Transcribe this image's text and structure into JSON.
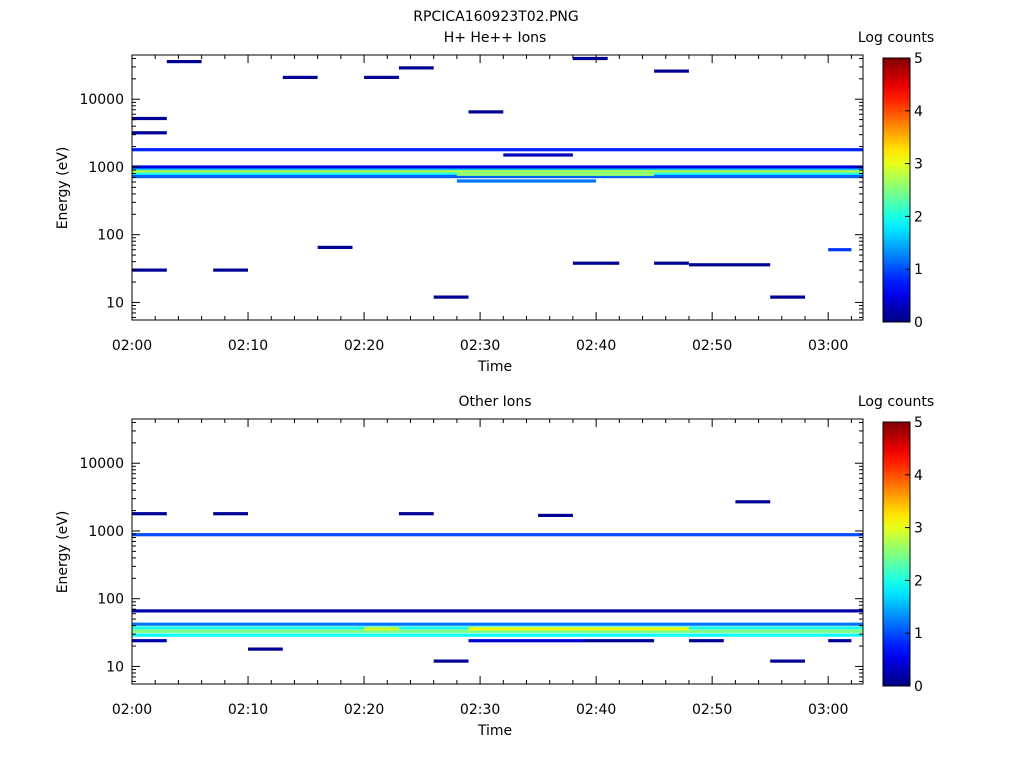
{
  "figure_title": "RPCICA160923T02.PNG",
  "colorbar": {
    "label": "Log counts",
    "ticks": [
      "0",
      "1",
      "2",
      "3",
      "4",
      "5"
    ],
    "range": [
      0,
      5
    ],
    "colormap": "jet"
  },
  "chart_data": [
    {
      "type": "heatmap",
      "title": "H+ He++ Ions",
      "xlabel": "Time",
      "ylabel": "Energy (eV)",
      "x_range": [
        "02:00",
        "03:03"
      ],
      "y_scale": "log",
      "ylim": [
        5.5,
        45000
      ],
      "xticks": [
        "02:00",
        "02:10",
        "02:20",
        "02:30",
        "02:40",
        "02:50",
        "03:00"
      ],
      "yticks": [
        "10",
        "100",
        "1000",
        "10000"
      ],
      "grid": false,
      "cells": [
        {
          "t0": "02:00",
          "t1": "03:03",
          "e": 1800,
          "v": 0.8
        },
        {
          "t0": "02:00",
          "t1": "03:03",
          "e": 1000,
          "v": 0.5
        },
        {
          "t0": "02:00",
          "t1": "03:03",
          "e": 900,
          "v": 1.6
        },
        {
          "t0": "02:00",
          "t1": "03:03",
          "e": 850,
          "v": 2.8
        },
        {
          "t0": "02:00",
          "t1": "03:03",
          "e": 800,
          "v": 2.4
        },
        {
          "t0": "02:00",
          "t1": "03:03",
          "e": 760,
          "v": 1.8
        },
        {
          "t0": "02:00",
          "t1": "03:03",
          "e": 720,
          "v": 1.1
        },
        {
          "t0": "02:28",
          "t1": "02:45",
          "e": 780,
          "v": 2.6
        },
        {
          "t0": "02:28",
          "t1": "02:40",
          "e": 620,
          "v": 1.2
        },
        {
          "t0": "02:00",
          "t1": "02:03",
          "e": 30,
          "v": 0.1
        },
        {
          "t0": "02:07",
          "t1": "02:10",
          "e": 30,
          "v": 0.1
        },
        {
          "t0": "02:16",
          "t1": "02:19",
          "e": 65,
          "v": 0.1
        },
        {
          "t0": "02:26",
          "t1": "02:29",
          "e": 12,
          "v": 0.1
        },
        {
          "t0": "02:38",
          "t1": "02:42",
          "e": 38,
          "v": 0.1
        },
        {
          "t0": "02:45",
          "t1": "02:48",
          "e": 38,
          "v": 0.1
        },
        {
          "t0": "02:48",
          "t1": "02:55",
          "e": 36,
          "v": 0.1
        },
        {
          "t0": "02:55",
          "t1": "02:58",
          "e": 12,
          "v": 0.1
        },
        {
          "t0": "03:00",
          "t1": "03:02",
          "e": 60,
          "v": 0.9
        },
        {
          "t0": "02:00",
          "t1": "02:03",
          "e": 5200,
          "v": 0.1
        },
        {
          "t0": "02:00",
          "t1": "02:03",
          "e": 3200,
          "v": 0.1
        },
        {
          "t0": "02:03",
          "t1": "02:06",
          "e": 36000,
          "v": 0.1
        },
        {
          "t0": "02:13",
          "t1": "02:16",
          "e": 21000,
          "v": 0.1
        },
        {
          "t0": "02:20",
          "t1": "02:23",
          "e": 21000,
          "v": 0.1
        },
        {
          "t0": "02:23",
          "t1": "02:26",
          "e": 29000,
          "v": 0.1
        },
        {
          "t0": "02:29",
          "t1": "02:32",
          "e": 6500,
          "v": 0.1
        },
        {
          "t0": "02:38",
          "t1": "02:41",
          "e": 40000,
          "v": 0.1
        },
        {
          "t0": "02:45",
          "t1": "02:48",
          "e": 26000,
          "v": 0.1
        },
        {
          "t0": "02:32",
          "t1": "02:38",
          "e": 1500,
          "v": 0.3
        }
      ]
    },
    {
      "type": "heatmap",
      "title": "Other Ions",
      "xlabel": "Time",
      "ylabel": "Energy (eV)",
      "x_range": [
        "02:00",
        "03:03"
      ],
      "y_scale": "log",
      "ylim": [
        5.5,
        45000
      ],
      "xticks": [
        "02:00",
        "02:10",
        "02:20",
        "02:30",
        "02:40",
        "02:50",
        "03:00"
      ],
      "yticks": [
        "10",
        "100",
        "1000",
        "10000"
      ],
      "grid": false,
      "cells": [
        {
          "t0": "02:00",
          "t1": "03:03",
          "e": 880,
          "v": 1.0
        },
        {
          "t0": "02:00",
          "t1": "03:03",
          "e": 42,
          "v": 1.2
        },
        {
          "t0": "02:00",
          "t1": "03:03",
          "e": 37,
          "v": 2.0
        },
        {
          "t0": "02:00",
          "t1": "03:03",
          "e": 33,
          "v": 2.5
        },
        {
          "t0": "02:00",
          "t1": "03:03",
          "e": 29,
          "v": 1.9
        },
        {
          "t0": "02:20",
          "t1": "02:23",
          "e": 36,
          "v": 2.9
        },
        {
          "t0": "02:29",
          "t1": "02:48",
          "e": 36,
          "v": 3.1
        },
        {
          "t0": "02:00",
          "t1": "03:03",
          "e": 66,
          "v": 0.2
        },
        {
          "t0": "02:00",
          "t1": "02:03",
          "e": 24,
          "v": 0.2
        },
        {
          "t0": "02:10",
          "t1": "02:13",
          "e": 18,
          "v": 0.1
        },
        {
          "t0": "02:26",
          "t1": "02:29",
          "e": 12,
          "v": 0.1
        },
        {
          "t0": "02:55",
          "t1": "02:58",
          "e": 12,
          "v": 0.1
        },
        {
          "t0": "02:29",
          "t1": "02:39",
          "e": 24,
          "v": 0.4
        },
        {
          "t0": "02:39",
          "t1": "02:45",
          "e": 24,
          "v": 0.1
        },
        {
          "t0": "02:48",
          "t1": "02:51",
          "e": 24,
          "v": 0.1
        },
        {
          "t0": "03:00",
          "t1": "03:02",
          "e": 24,
          "v": 0.1
        },
        {
          "t0": "02:00",
          "t1": "02:03",
          "e": 1800,
          "v": 0.1
        },
        {
          "t0": "02:07",
          "t1": "02:10",
          "e": 1800,
          "v": 0.1
        },
        {
          "t0": "02:23",
          "t1": "02:26",
          "e": 1800,
          "v": 0.1
        },
        {
          "t0": "02:35",
          "t1": "02:38",
          "e": 1700,
          "v": 0.1
        },
        {
          "t0": "02:52",
          "t1": "02:55",
          "e": 2700,
          "v": 0.1
        }
      ]
    }
  ]
}
